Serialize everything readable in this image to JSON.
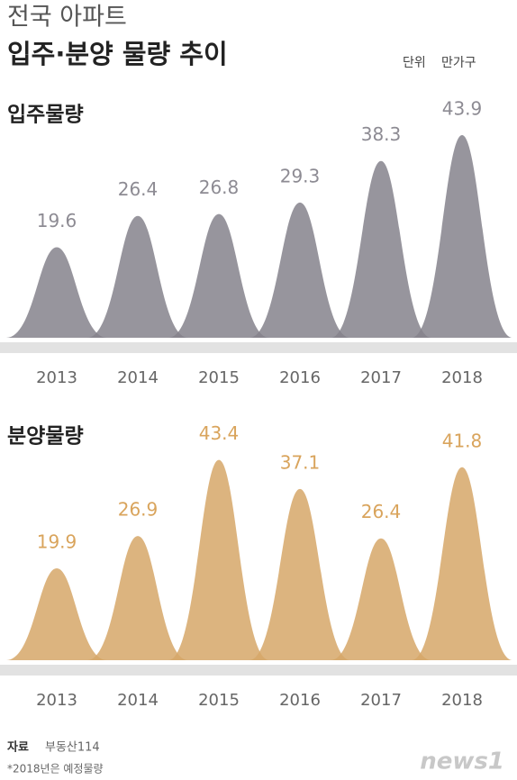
{
  "title_line1": "전국 아파트",
  "title_line2": "입주·분양 물량 추이",
  "unit_label": "단위",
  "unit": "만가구",
  "chart_data": [
    {
      "type": "peak",
      "title": "입주물량",
      "categories": [
        "2013",
        "2014",
        "2015",
        "2016",
        "2017",
        "2018"
      ],
      "values": [
        19.6,
        26.4,
        26.8,
        29.3,
        38.3,
        43.9
      ],
      "color": "#85828c",
      "label_color": "#8d8b93"
    },
    {
      "type": "peak",
      "title": "분양물량",
      "categories": [
        "2013",
        "2014",
        "2015",
        "2016",
        "2017",
        "2018"
      ],
      "values": [
        19.9,
        26.9,
        43.4,
        37.1,
        26.4,
        41.8
      ],
      "color": "#d6a768",
      "label_color": "#d9a45c"
    }
  ],
  "source_label": "자료",
  "source": "부동산114",
  "note": "*2018년은 예정물량",
  "logo": "news1"
}
